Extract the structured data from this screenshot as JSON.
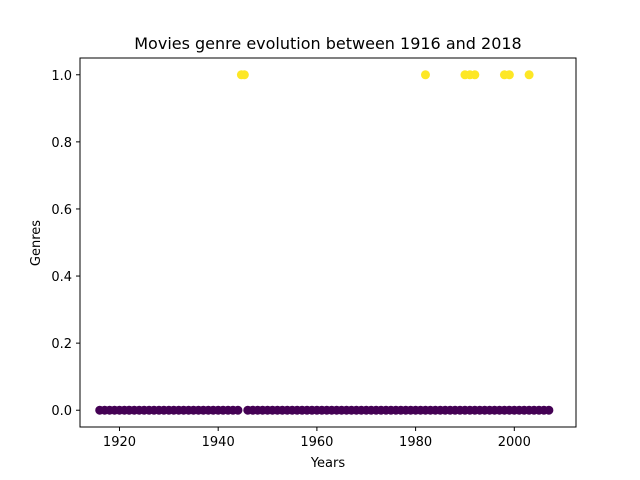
{
  "chart_data": {
    "type": "scatter",
    "title": "Movies genre evolution between 1916 and 2018",
    "xlabel": "Years",
    "ylabel": "Genres",
    "xlim": [
      1912,
      2012.5
    ],
    "ylim": [
      -0.05,
      1.05
    ],
    "xticks": [
      "1920",
      "1940",
      "1960",
      "1980",
      "2000"
    ],
    "xtick_values": [
      1920,
      1940,
      1960,
      1980,
      2000
    ],
    "yticks": [
      "0.0",
      "0.2",
      "0.4",
      "0.6",
      "0.8",
      "1.0"
    ],
    "ytick_values": [
      0.0,
      0.2,
      0.4,
      0.6,
      0.8,
      1.0
    ],
    "grid": false,
    "legend": "none",
    "colors": {
      "0": "#440154",
      "1": "#fde725"
    },
    "series": [
      {
        "color": "#440154",
        "x_range": [
          1916,
          2007
        ],
        "y": 0.0,
        "x": [
          1916,
          1917,
          1918,
          1919,
          1920,
          1921,
          1922,
          1923,
          1924,
          1925,
          1926,
          1927,
          1928,
          1929,
          1930,
          1931,
          1932,
          1933,
          1934,
          1935,
          1936,
          1937,
          1938,
          1939,
          1940,
          1941,
          1942,
          1943,
          1944,
          1946,
          1947,
          1948,
          1949,
          1950,
          1951,
          1952,
          1953,
          1954,
          1955,
          1956,
          1957,
          1958,
          1959,
          1960,
          1961,
          1962,
          1963,
          1964,
          1965,
          1966,
          1967,
          1968,
          1969,
          1970,
          1971,
          1972,
          1973,
          1974,
          1975,
          1976,
          1977,
          1978,
          1979,
          1980,
          1981,
          1982,
          1983,
          1984,
          1985,
          1986,
          1987,
          1988,
          1989,
          1990,
          1991,
          1992,
          1993,
          1994,
          1995,
          1996,
          1997,
          1998,
          1999,
          2000,
          2001,
          2002,
          2003,
          2004,
          2005,
          2006,
          2007
        ]
      },
      {
        "color": "#fde725",
        "y": 1.0,
        "x": [
          1944.7,
          1945.3,
          1982,
          1990,
          1991,
          1992,
          1998,
          1999,
          2003
        ]
      }
    ]
  }
}
